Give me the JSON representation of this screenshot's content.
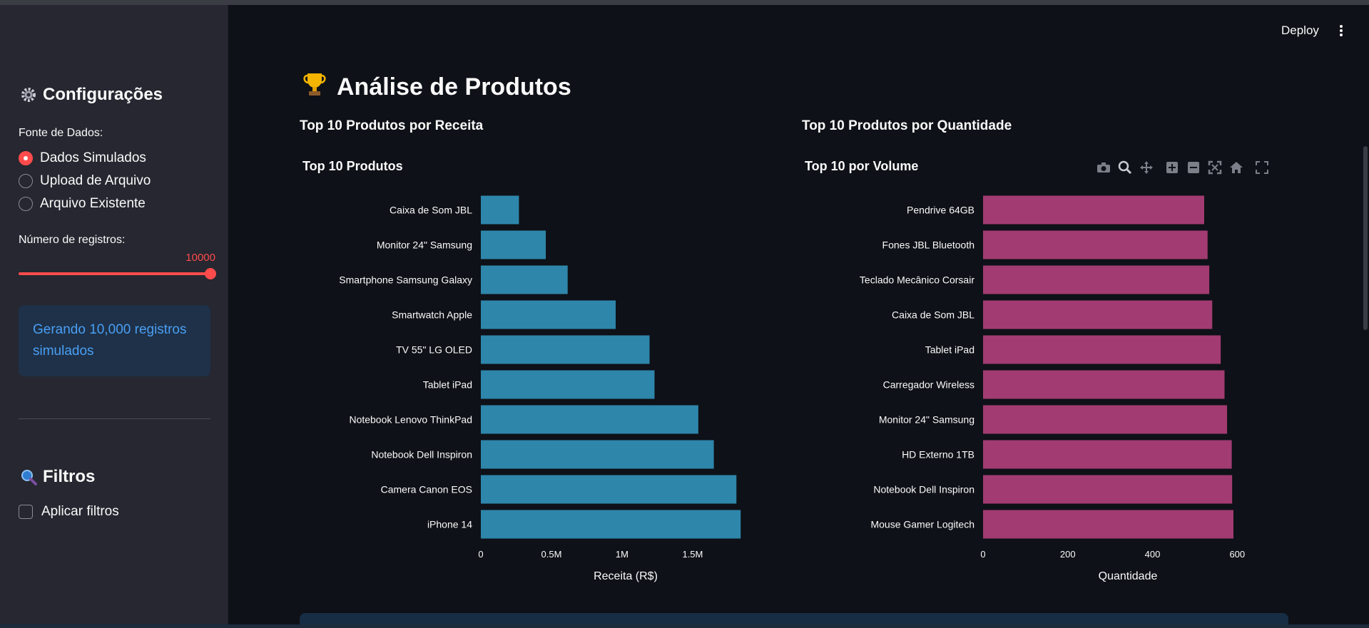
{
  "sidebar": {
    "config_title": "Configurações",
    "data_source_label": "Fonte de Dados:",
    "radio_options": [
      {
        "label": "Dados Simulados",
        "selected": true
      },
      {
        "label": "Upload de Arquivo",
        "selected": false
      },
      {
        "label": "Arquivo Existente",
        "selected": false
      }
    ],
    "records_label": "Número de registros:",
    "records_value": "10000",
    "slider_fraction": 1.0,
    "info_message": "Gerando 10,000 registros simulados",
    "filters_title": "Filtros",
    "apply_filters_label": "Aplicar filtros",
    "apply_filters_checked": false
  },
  "header": {
    "deploy_label": "Deploy"
  },
  "main": {
    "title": "Análise de Produtos",
    "revenue_section_title": "Top 10 Produtos por Receita",
    "quantity_section_title": "Top 10 Produtos por Quantidade"
  },
  "modebar_icons": [
    "camera-icon",
    "zoom-icon",
    "pan-icon",
    "zoom-in-icon",
    "zoom-out-icon",
    "autoscale-icon",
    "home-icon",
    "fullscreen-icon"
  ],
  "colors": {
    "accent": "#ff4b4b",
    "revenue_bar": "#2e86ab",
    "quantity_bar": "#a23b72",
    "info_text": "#4a9ff5"
  },
  "chart_data": [
    {
      "type": "bar",
      "orientation": "horizontal",
      "title": "Top 10 Produtos",
      "xlabel": "Receita (R$)",
      "ylabel": "",
      "xlim": [
        0,
        1950000
      ],
      "xticks": [
        0,
        500000,
        1000000,
        1500000
      ],
      "xtick_labels": [
        "0",
        "0.5M",
        "1M",
        "1.5M"
      ],
      "categories": [
        "Caixa de Som JBL",
        "Monitor 24\" Samsung",
        "Smartphone Samsung Galaxy",
        "Smartwatch Apple",
        "TV 55\" LG OLED",
        "Tablet iPad",
        "Notebook Lenovo ThinkPad",
        "Notebook Dell Inspiron",
        "Camera Canon EOS",
        "iPhone 14"
      ],
      "values": [
        270000,
        460000,
        615000,
        955000,
        1195000,
        1230000,
        1540000,
        1650000,
        1810000,
        1840000
      ]
    },
    {
      "type": "bar",
      "orientation": "horizontal",
      "title": "Top 10 por Volume",
      "xlabel": "Quantidade",
      "ylabel": "",
      "xlim": [
        0,
        650
      ],
      "xticks": [
        0,
        200,
        400,
        600
      ],
      "xtick_labels": [
        "0",
        "200",
        "400",
        "600"
      ],
      "categories": [
        "Pendrive 64GB",
        "Fones JBL Bluetooth",
        "Teclado Mecânico Corsair",
        "Caixa de Som JBL",
        "Tablet iPad",
        "Carregador Wireless",
        "Monitor 24\" Samsung",
        "HD Externo 1TB",
        "Notebook Dell Inspiron",
        "Mouse Gamer Logitech"
      ],
      "values": [
        522,
        530,
        534,
        541,
        561,
        570,
        576,
        587,
        588,
        591
      ]
    }
  ]
}
